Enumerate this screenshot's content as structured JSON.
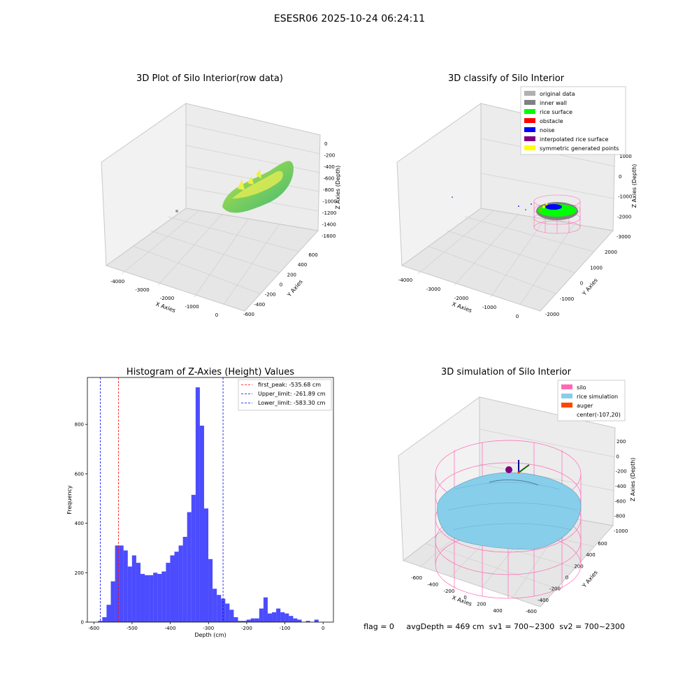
{
  "suptitle": "ESESR06 2025-10-24 06:24:11",
  "footer": "flag = 0     avgDepth = 469 cm  sv1 = 700~2300  sv2 = 700~2300",
  "panels": {
    "raw": {
      "title": "3D Plot of Silo Interior(row data)",
      "xlabel": "X Axies",
      "ylabel": "Y Axies",
      "zlabel": "Z Axies (Depth)",
      "xticks": [
        "-4000",
        "-3000",
        "-2000",
        "-1000",
        "0"
      ],
      "yticks": [
        "-600",
        "-400",
        "-200",
        "0",
        "200",
        "400",
        "600"
      ],
      "zticks": [
        "0",
        "-200",
        "-400",
        "-600",
        "-800",
        "-1000",
        "-1200",
        "-1400",
        "-1600"
      ]
    },
    "classify": {
      "title": "3D classify of Silo Interior",
      "xlabel": "X Axies",
      "ylabel": "Y Axies",
      "zlabel": "Z Axies (Depth)",
      "xticks": [
        "-4000",
        "-3000",
        "-2000",
        "-1000",
        "0"
      ],
      "yticks": [
        "-2000",
        "-1000",
        "0",
        "1000",
        "2000"
      ],
      "zticks": [
        "1000",
        "0",
        "-1000",
        "-2000",
        "-3000"
      ],
      "legend": [
        {
          "label": "original data",
          "color": "#b0b0b0"
        },
        {
          "label": "inner wall",
          "color": "#808080"
        },
        {
          "label": "rice surface",
          "color": "#00ff00"
        },
        {
          "label": "obstacle",
          "color": "#ff0000"
        },
        {
          "label": "noise",
          "color": "#0000ff"
        },
        {
          "label": "interpolated rice surface",
          "color": "#800080"
        },
        {
          "label": "symmetric generated points",
          "color": "#ffff00"
        }
      ]
    },
    "simulation": {
      "title": "3D simulation of Silo Interior",
      "xlabel": "X Axies",
      "ylabel": "Y Axies",
      "zlabel": "Z Axies (Depth)",
      "xticks": [
        "-600",
        "-400",
        "-200",
        "0",
        "200",
        "400"
      ],
      "yticks": [
        "-600",
        "-400",
        "-200",
        "0",
        "200",
        "400",
        "600"
      ],
      "zticks": [
        "200",
        "0",
        "-200",
        "-400",
        "-600",
        "-800",
        "-1000"
      ],
      "legend": [
        {
          "label": "silo",
          "color": "#ff69b4"
        },
        {
          "label": "rice simulation",
          "color": "#87ceeb"
        },
        {
          "label": "auger",
          "color": "#ff4500"
        },
        {
          "label": "center(-107,20)",
          "color": ""
        }
      ]
    }
  },
  "chart_data": {
    "type": "bar",
    "title": "Histogram of Z-Axies (Height) Values",
    "xlabel": "Depth (cm)",
    "ylabel": "Frequency",
    "xlim": [
      -617,
      27
    ],
    "ylim": [
      0,
      990
    ],
    "xticks": [
      -600,
      -500,
      -400,
      -300,
      -200,
      -100,
      0
    ],
    "yticks": [
      0,
      200,
      400,
      600,
      800
    ],
    "bar_color": "#0000ff",
    "bin_width": 11.1,
    "bins_start": [
      -589.0,
      -577.9,
      -566.8,
      -555.7,
      -544.6,
      -533.5,
      -522.4,
      -511.3,
      -500.2,
      -489.1,
      -478.0,
      -466.9,
      -455.8,
      -444.7,
      -433.6,
      -422.5,
      -411.4,
      -400.3,
      -389.2,
      -378.1,
      -367.0,
      -355.9,
      -344.8,
      -333.7,
      -322.6,
      -311.5,
      -300.4,
      -289.3,
      -278.2,
      -267.1,
      -256.0,
      -244.9,
      -233.8,
      -222.7,
      -211.6,
      -200.5,
      -189.4,
      -178.3,
      -167.2,
      -156.1,
      -145.0,
      -133.9,
      -122.8,
      -111.7,
      -100.6,
      -89.5,
      -78.4,
      -67.3,
      -56.2,
      -45.1,
      -34.0,
      -22.9,
      -11.8
    ],
    "counts": [
      5,
      20,
      70,
      165,
      310,
      310,
      290,
      225,
      270,
      240,
      195,
      190,
      190,
      200,
      195,
      205,
      240,
      270,
      285,
      310,
      345,
      445,
      515,
      950,
      795,
      460,
      255,
      135,
      110,
      95,
      75,
      50,
      20,
      5,
      5,
      10,
      15,
      15,
      55,
      100,
      35,
      40,
      55,
      40,
      35,
      25,
      15,
      10,
      0,
      5,
      0,
      10,
      0
    ],
    "lines": [
      {
        "label": "first_peak: -535.68 cm",
        "x": -535.68,
        "color": "#ff0000"
      },
      {
        "label": "Upper_limit: -261.89 cm",
        "x": -261.89,
        "color": "#0000ff"
      },
      {
        "label": "Lower_limit: -583.30 cm",
        "x": -583.3,
        "color": "#0000ff"
      }
    ]
  }
}
